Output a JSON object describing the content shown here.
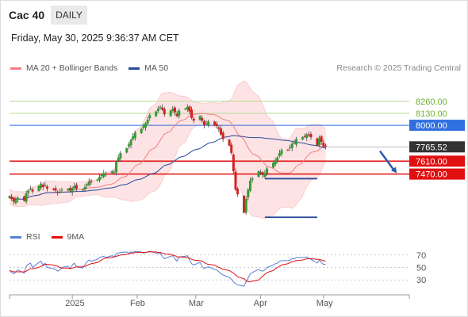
{
  "header": {
    "symbol": "Cac 40",
    "timeframe": "DAILY"
  },
  "datetime": "Friday, May 30, 2025 9:36:37 AM CET",
  "legend": {
    "ma20_label": "MA 20 + Bollinger Bands",
    "ma50_label": "MA 50",
    "credit": "Research © 2025 Trading Central",
    "rsi_label": "RSI",
    "rsi_ma_label": "9MA"
  },
  "colors": {
    "ma20": "#f08080",
    "bollinger_fill": "#fde3e3",
    "ma50": "#2a4b9b",
    "candle_up": "#2e9e2e",
    "candle_down": "#d22222",
    "resistance_green": "#6fae2f",
    "pivot_blue": "#2f6fe0",
    "support_red": "#e01010",
    "price_badge": "#333333",
    "rsi": "#5b7fd6",
    "rsi_ma": "#e01010",
    "arrow": "#2b5ba8"
  },
  "chart_data": [
    {
      "type": "candlestick",
      "title": "",
      "x_axis": {
        "tick_labels": [
          "2025",
          "Feb",
          "Mar",
          "Apr",
          "May"
        ]
      },
      "y_axis": {
        "range": [
          6950,
          8500
        ],
        "scale": "linear"
      },
      "grid": false,
      "x_start": "2024-12-02",
      "last_price": "7765.52",
      "levels": [
        {
          "value": 8260,
          "label": "8260.00",
          "kind": "resistance"
        },
        {
          "value": 8130,
          "label": "8130.00",
          "kind": "resistance"
        },
        {
          "value": 8000,
          "label": "8000.00",
          "kind": "pivot"
        },
        {
          "value": 7610,
          "label": "7610.00",
          "kind": "support"
        },
        {
          "value": 7470,
          "label": "7470.00",
          "kind": "support"
        }
      ],
      "horizontal_markers": [
        {
          "x0": "2025-04-03",
          "x1": "2025-04-28",
          "value": 7420
        },
        {
          "x0": "2025-04-03",
          "x1": "2025-04-28",
          "value": 7000
        }
      ],
      "arrow": {
        "from": [
          "2025-05-28",
          7720
        ],
        "to": [
          "2025-06-05",
          7480
        ]
      },
      "closes": [
        7230,
        7200,
        7170,
        7190,
        7210,
        7180,
        7260,
        7290,
        7310,
        7280,
        7340,
        7360,
        7330,
        7350,
        7310,
        7300,
        7290,
        7270,
        7280,
        7300,
        7310,
        7290,
        7320,
        7340,
        7310,
        7300,
        7330,
        7360,
        7390,
        7380,
        7410,
        7440,
        7460,
        7480,
        7470,
        7500,
        7490,
        7600,
        7650,
        7700,
        7750,
        7790,
        7840,
        7880,
        7920,
        7960,
        7990,
        8020,
        8060,
        8110,
        8150,
        8180,
        8200,
        8170,
        8120,
        8160,
        8180,
        8140,
        8100,
        8160,
        8180,
        8200,
        8150,
        8080,
        8050,
        8100,
        8050,
        8000,
        8020,
        8040,
        8000,
        7990,
        7960,
        7900,
        7850,
        7780,
        7700,
        7500,
        7300,
        7250,
        7050,
        7200,
        7300,
        7400,
        7420,
        7500,
        7480,
        7460,
        7480,
        7530,
        7590,
        7620,
        7650,
        7700,
        7730,
        7730,
        7760,
        7800,
        7810,
        7850,
        7870,
        7880,
        7900,
        7890,
        7870,
        7780,
        7860,
        7820,
        7770,
        7765.52
      ]
    },
    {
      "type": "line",
      "title": "",
      "y_axis": {
        "tick_labels": [
          "70",
          "50",
          "30"
        ],
        "range": [
          15,
          85
        ]
      },
      "series": [
        {
          "name": "RSI",
          "values": [
            45,
            42,
            40,
            43,
            46,
            41,
            52,
            55,
            57,
            50,
            58,
            60,
            54,
            57,
            50,
            48,
            47,
            44,
            46,
            50,
            52,
            48,
            54,
            57,
            51,
            49,
            54,
            59,
            62,
            60,
            63,
            66,
            67,
            68,
            66,
            69,
            67,
            72,
            73,
            74,
            75,
            73,
            75,
            74,
            76,
            75,
            73,
            74,
            75,
            76,
            73,
            72,
            73,
            68,
            64,
            68,
            69,
            64,
            60,
            67,
            68,
            69,
            62,
            56,
            54,
            58,
            52,
            48,
            50,
            51,
            47,
            46,
            43,
            40,
            38,
            34,
            31,
            27,
            24,
            22,
            20,
            27,
            33,
            40,
            42,
            47,
            45,
            44,
            46,
            50,
            54,
            56,
            57,
            60,
            61,
            61,
            62,
            64,
            64,
            66,
            66,
            66,
            67,
            65,
            63,
            57,
            62,
            58,
            55,
            55
          ]
        },
        {
          "name": "9MA",
          "values": [
            45,
            44,
            43,
            43,
            43,
            43,
            44,
            46,
            48,
            48,
            50,
            52,
            53,
            55,
            55,
            54,
            53,
            52,
            50,
            49,
            49,
            48,
            49,
            50,
            51,
            51,
            52,
            53,
            55,
            56,
            58,
            60,
            62,
            64,
            65,
            66,
            67,
            68,
            69,
            70,
            71,
            72,
            73,
            73,
            74,
            74,
            74,
            74,
            75,
            75,
            75,
            74,
            74,
            73,
            72,
            71,
            70,
            69,
            67,
            67,
            66,
            66,
            65,
            63,
            62,
            61,
            60,
            58,
            56,
            55,
            54,
            52,
            50,
            49,
            47,
            45,
            43,
            41,
            38,
            35,
            32,
            29,
            27,
            27,
            28,
            30,
            33,
            36,
            39,
            42,
            45,
            48,
            50,
            52,
            54,
            56,
            58,
            59,
            60,
            61,
            62,
            63,
            64,
            64,
            64,
            63,
            63,
            62,
            61,
            60
          ]
        }
      ]
    }
  ]
}
